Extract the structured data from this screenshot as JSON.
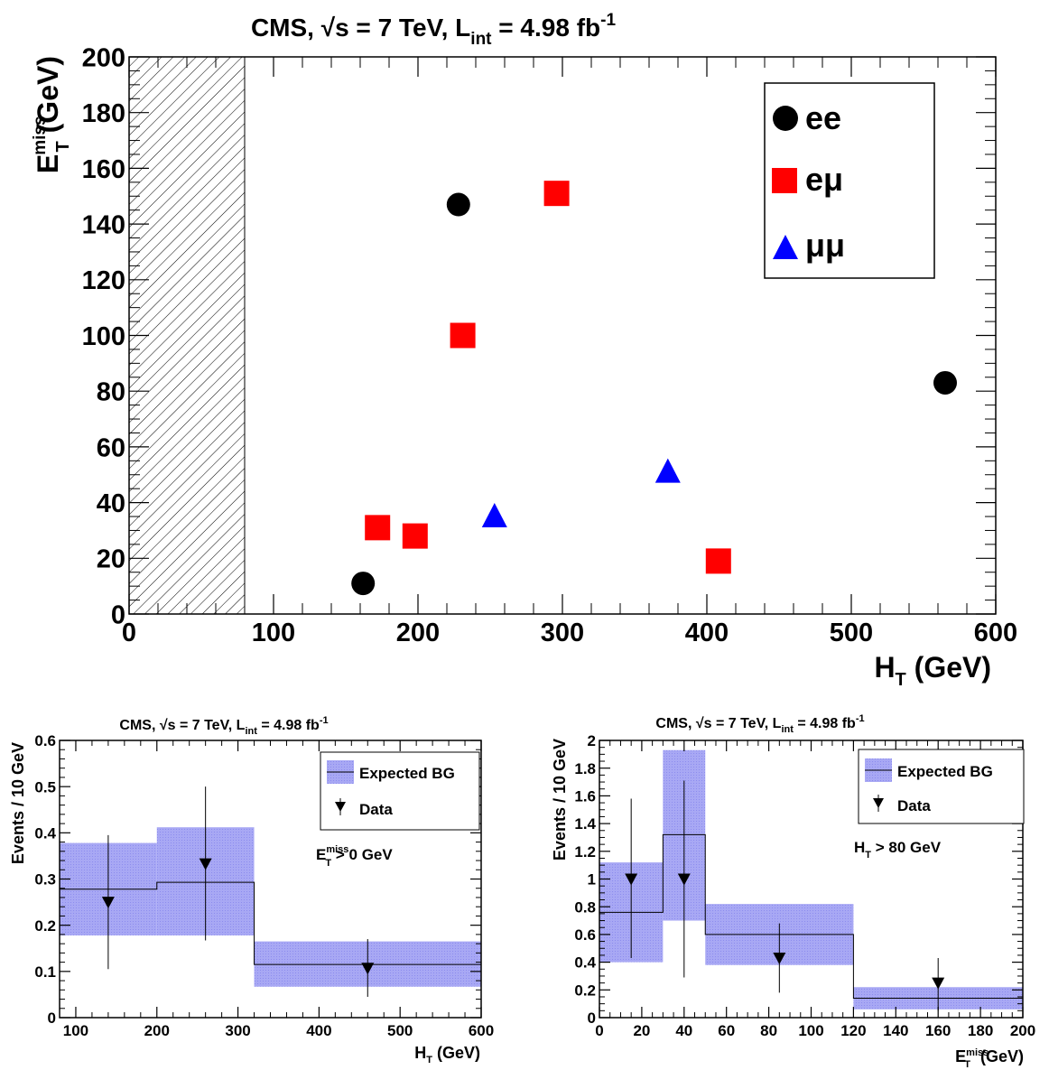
{
  "chart_data": [
    {
      "type": "scatter",
      "title": "CMS, √s = 7 TeV, L",
      "title_sub": "int",
      "title_tail": " = 4.98 fb",
      "title_sup": "-1",
      "xlabel": "H",
      "xlabel_sub": "T",
      "xlabel_tail": " (GeV)",
      "ylabel": "E",
      "ylabel_sup": "miss",
      "ylabel_sub": "T",
      "ylabel_tail": " (GeV)",
      "xlim": [
        0,
        600
      ],
      "ylim": [
        0,
        200
      ],
      "xticks": [
        0,
        100,
        200,
        300,
        400,
        500,
        600
      ],
      "xtick_labels": [
        "0",
        "100",
        "200",
        "300",
        "400",
        "500",
        "600"
      ],
      "yticks": [
        0,
        20,
        40,
        60,
        80,
        100,
        120,
        140,
        160,
        180,
        200
      ],
      "ytick_labels": [
        "0",
        "20",
        "40",
        "60",
        "80",
        "100",
        "120",
        "140",
        "160",
        "180",
        "200"
      ],
      "excluded_region": [
        0,
        80
      ],
      "legend_position": "top-right",
      "series": [
        {
          "name": "ee",
          "marker": "circle",
          "color": "#000000",
          "points": [
            [
              162,
              11
            ],
            [
              228,
              147
            ],
            [
              565,
              83
            ]
          ]
        },
        {
          "name": "eμ",
          "marker": "square",
          "color": "#ff0000",
          "points": [
            [
              172,
              31
            ],
            [
              198,
              28
            ],
            [
              231,
              100
            ],
            [
              296,
              151
            ],
            [
              408,
              19
            ]
          ]
        },
        {
          "name": "μμ",
          "marker": "triangle",
          "color": "#0000ff",
          "points": [
            [
              253,
              35
            ],
            [
              373,
              51
            ]
          ]
        }
      ]
    },
    {
      "type": "bar",
      "title": "CMS, √s = 7 TeV, L",
      "title_sub": "int",
      "title_tail": " = 4.98 fb",
      "title_sup": "-1",
      "xlabel": "H",
      "xlabel_sub": "T",
      "xlabel_tail": " (GeV)",
      "ylabel": "Events / 10 GeV",
      "xlim": [
        80,
        600
      ],
      "ylim": [
        0,
        0.6
      ],
      "xticks": [
        100,
        200,
        300,
        400,
        500,
        600
      ],
      "xtick_labels": [
        "100",
        "200",
        "300",
        "400",
        "500",
        "600"
      ],
      "yticks": [
        0,
        0.1,
        0.2,
        0.3,
        0.4,
        0.5,
        0.6
      ],
      "ytick_labels": [
        "0",
        "0.1",
        "0.2",
        "0.3",
        "0.4",
        "0.5",
        "0.6"
      ],
      "legend_position": "top-right",
      "legend": [
        "Expected BG",
        "Data"
      ],
      "annotation": {
        "text": "E",
        "sup": "miss",
        "sub": "T",
        "tail": " > 0 GeV"
      },
      "bins": [
        {
          "lo": 80,
          "hi": 200,
          "value": 0.278,
          "err_lo": 0.178,
          "err_hi": 0.378
        },
        {
          "lo": 200,
          "hi": 320,
          "value": 0.293,
          "err_lo": 0.178,
          "err_hi": 0.412
        },
        {
          "lo": 320,
          "hi": 600,
          "value": 0.115,
          "err_lo": 0.067,
          "err_hi": 0.165
        }
      ],
      "data_points": [
        {
          "x": 140,
          "y": 0.25,
          "err_lo": 0.105,
          "err_hi": 0.395
        },
        {
          "x": 260,
          "y": 0.333,
          "err_lo": 0.167,
          "err_hi": 0.5
        },
        {
          "x": 460,
          "y": 0.107,
          "err_lo": 0.045,
          "err_hi": 0.17
        }
      ]
    },
    {
      "type": "bar",
      "title": "CMS, √s = 7 TeV, L",
      "title_sub": "int",
      "title_tail": " = 4.98 fb",
      "title_sup": "-1",
      "xlabel": "E",
      "xlabel_sup": "miss",
      "xlabel_sub": "T",
      "xlabel_tail": " (GeV)",
      "ylabel": "Events / 10 GeV",
      "xlim": [
        0,
        200
      ],
      "ylim": [
        0,
        2
      ],
      "xticks": [
        0,
        20,
        40,
        60,
        80,
        100,
        120,
        140,
        160,
        180,
        200
      ],
      "xtick_labels": [
        "0",
        "20",
        "40",
        "60",
        "80",
        "100",
        "120",
        "140",
        "160",
        "180",
        "200"
      ],
      "yticks": [
        0,
        0.2,
        0.4,
        0.6,
        0.8,
        1,
        1.2,
        1.4,
        1.6,
        1.8,
        2
      ],
      "ytick_labels": [
        "0",
        "0.2",
        "0.4",
        "0.6",
        "0.8",
        "1",
        "1.2",
        "1.4",
        "1.6",
        "1.8",
        "2"
      ],
      "legend_position": "top-right",
      "legend": [
        "Expected BG",
        "Data"
      ],
      "annotation": {
        "text": "H",
        "sup": "",
        "sub": "T",
        "tail": " > 80 GeV"
      },
      "bins": [
        {
          "lo": 0,
          "hi": 30,
          "value": 0.76,
          "err_lo": 0.4,
          "err_hi": 1.12
        },
        {
          "lo": 30,
          "hi": 50,
          "value": 1.32,
          "err_lo": 0.7,
          "err_hi": 1.93
        },
        {
          "lo": 50,
          "hi": 120,
          "value": 0.6,
          "err_lo": 0.38,
          "err_hi": 0.82
        },
        {
          "lo": 120,
          "hi": 200,
          "value": 0.14,
          "err_lo": 0.06,
          "err_hi": 0.22
        }
      ],
      "data_points": [
        {
          "x": 15,
          "y": 1.0,
          "err_lo": 0.43,
          "err_hi": 1.58
        },
        {
          "x": 40,
          "y": 1.0,
          "err_lo": 0.29,
          "err_hi": 1.71
        },
        {
          "x": 85,
          "y": 0.43,
          "err_lo": 0.18,
          "err_hi": 0.68
        },
        {
          "x": 160,
          "y": 0.25,
          "err_lo": 0.05,
          "err_hi": 0.43
        }
      ]
    }
  ]
}
